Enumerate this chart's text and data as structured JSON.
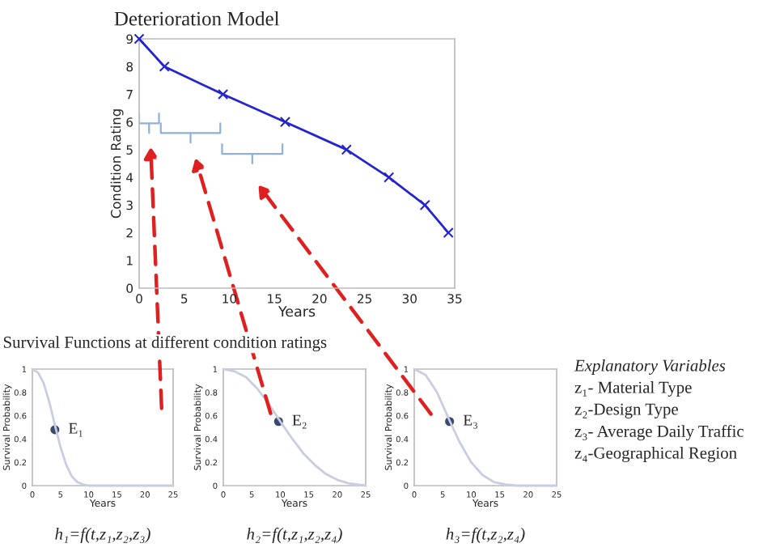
{
  "chart_data": [
    {
      "type": "line",
      "title": "Deterioration Model",
      "xlabel": "Years",
      "ylabel": "Condition Rating",
      "xlim": [
        0,
        35
      ],
      "ylim": [
        0,
        9
      ],
      "xticks": [
        0,
        5,
        10,
        15,
        20,
        25,
        30,
        35
      ],
      "yticks": [
        0,
        1,
        2,
        3,
        4,
        5,
        6,
        7,
        8,
        9
      ],
      "marker": "cross",
      "line_style": "solid",
      "grid": false,
      "legend": false,
      "x": [
        0,
        2.8,
        9.3,
        16.2,
        23,
        27.7,
        31.7,
        34.3
      ],
      "series": [
        {
          "color": "#2424d0",
          "values": [
            9,
            8,
            7,
            6,
            5,
            4,
            3,
            2
          ]
        }
      ],
      "annotations": [
        "Survival Functions at different condition ratings"
      ]
    },
    {
      "type": "line",
      "xlabel": "Years",
      "ylabel": "Survival Probability",
      "xlim": [
        0,
        25
      ],
      "ylim": [
        0,
        1
      ],
      "xticks": [
        0,
        5,
        10,
        15,
        20,
        25
      ],
      "yticks": [
        0,
        0.2,
        0.4,
        0.6,
        0.8,
        1
      ],
      "grid": false,
      "legend": false,
      "series": [
        {
          "color": "#c8cde2",
          "x": [
            0,
            1,
            2,
            3,
            4,
            5,
            6,
            7,
            8,
            9,
            10,
            12,
            25
          ],
          "values": [
            1,
            0.97,
            0.88,
            0.72,
            0.52,
            0.33,
            0.18,
            0.08,
            0.03,
            0.01,
            0,
            0,
            0
          ]
        },
        {
          "type": "scatter",
          "color": "#3a4a6e",
          "x": [
            4
          ],
          "values": [
            0.48
          ]
        }
      ],
      "annotations": [
        {
          "text": "E₁",
          "x": 4,
          "y": 0.48
        },
        "h₁=f(t,z₁,z₂,z₃)"
      ]
    },
    {
      "type": "line",
      "xlabel": "Years",
      "ylabel": "Survival Probability",
      "xlim": [
        0,
        25
      ],
      "ylim": [
        0,
        1
      ],
      "xticks": [
        0,
        5,
        10,
        15,
        20,
        25
      ],
      "yticks": [
        0,
        0.2,
        0.4,
        0.6,
        0.8,
        1
      ],
      "grid": false,
      "legend": false,
      "series": [
        {
          "color": "#c8cde2",
          "x": [
            0,
            2,
            4,
            6,
            8,
            10,
            12,
            14,
            16,
            18,
            20,
            22,
            25
          ],
          "values": [
            1,
            0.98,
            0.93,
            0.83,
            0.7,
            0.55,
            0.41,
            0.28,
            0.18,
            0.1,
            0.05,
            0.02,
            0
          ]
        },
        {
          "type": "scatter",
          "color": "#3a4a6e",
          "x": [
            9.7
          ],
          "values": [
            0.55
          ]
        }
      ],
      "annotations": [
        {
          "text": "E₂",
          "x": 9.7,
          "y": 0.55
        },
        "h₂=f(t,z₁,z₂,z₄)"
      ]
    },
    {
      "type": "line",
      "xlabel": "Years",
      "ylabel": "Survival Probability",
      "xlim": [
        0,
        25
      ],
      "ylim": [
        0,
        1
      ],
      "xticks": [
        0,
        5,
        10,
        15,
        20,
        25
      ],
      "yticks": [
        0,
        0.2,
        0.4,
        0.6,
        0.8,
        1
      ],
      "grid": false,
      "legend": false,
      "series": [
        {
          "color": "#c8cde2",
          "x": [
            0,
            2,
            4,
            6,
            8,
            10,
            12,
            14,
            16,
            18,
            25
          ],
          "values": [
            1,
            0.95,
            0.8,
            0.58,
            0.37,
            0.2,
            0.09,
            0.03,
            0.01,
            0,
            0
          ]
        },
        {
          "type": "scatter",
          "color": "#3a4a6e",
          "x": [
            6.2
          ],
          "values": [
            0.55
          ]
        }
      ],
      "annotations": [
        {
          "text": "E₃",
          "x": 6.2,
          "y": 0.55
        },
        "h₃=f(t,z₂,z₄)",
        "Explanatory Variables",
        "z₁- Material Type",
        "z₂-Design Type",
        "z₃- Average Daily Traffic",
        "z₄-Geographical Region"
      ]
    }
  ]
}
